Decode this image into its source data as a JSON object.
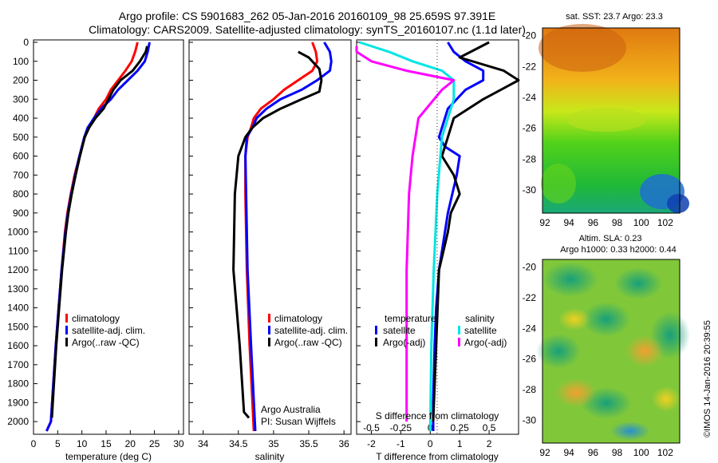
{
  "header": {
    "line1": "Argo profile: CS 5901683_262 05-Jan-2016 20160109_98 25.659S 97.391E",
    "line2": "Climatology: CARS2009. Satellite-adjusted climatology: synTS_20160107.nc (1.1d later)"
  },
  "colors": {
    "climatology": "#ff0000",
    "satellite": "#0000ff",
    "argo": "#000000",
    "sat_salinity": "#00e5e5",
    "argo_salinity": "#ff00ff"
  },
  "depth_ticks": [
    "0",
    "100",
    "200",
    "300",
    "400",
    "500",
    "600",
    "700",
    "800",
    "900",
    "1000",
    "1100",
    "1200",
    "1300",
    "1400",
    "1500",
    "1600",
    "1700",
    "1800",
    "1900",
    "2000"
  ],
  "legend_profile": [
    "climatology",
    "satellite-adj. clim.",
    "Argo(..raw -QC)"
  ],
  "credit": {
    "line1": "Argo Australia",
    "line2": "PI: Susan Wijffels"
  },
  "diff_legend": {
    "temperature_head": "temperature",
    "salinity_head": "salinity",
    "sat": "satellite",
    "argo": "Argo(-adj)"
  },
  "maps": {
    "sst_title": "sat. SST: 23.7  Argo: 23.3",
    "sla_title1": "Altim. SLA: 0.23",
    "sla_title2": "Argo h1000: 0.33 h2000: 0.44",
    "lat_ticks": [
      "-20",
      "-22",
      "-24",
      "-26",
      "-28",
      "-30"
    ],
    "lon_ticks": [
      "92",
      "94",
      "96",
      "98",
      "100",
      "102"
    ]
  },
  "timestamp": "©IMOS 14-Jan-2016 20:39:55",
  "chart_data": [
    {
      "type": "line",
      "xlabel": "temperature (deg C)",
      "xlim": [
        0,
        31
      ],
      "ylim": [
        0,
        2050
      ],
      "y_reversed": true,
      "xticks": [
        "0",
        "5",
        "10",
        "15",
        "20",
        "25",
        "30"
      ],
      "series": [
        {
          "name": "climatology",
          "x": [
            21.5,
            21.0,
            20.3,
            19.0,
            17.5,
            16.0,
            15.0,
            13.5,
            12.5,
            11.5,
            10.5,
            9.5,
            8.5,
            7.7,
            7.0,
            6.5,
            5.8,
            5.2,
            4.6,
            3.6,
            2.7
          ],
          "y": [
            0,
            50,
            100,
            150,
            200,
            250,
            300,
            350,
            400,
            450,
            500,
            600,
            700,
            800,
            900,
            1000,
            1200,
            1400,
            1600,
            2000,
            2050
          ]
        },
        {
          "name": "satellite-adj. clim.",
          "x": [
            24.0,
            23.6,
            23.0,
            21.5,
            19.5,
            17.5,
            16.0,
            14.0,
            12.5,
            11.2,
            10.5,
            9.5,
            8.6,
            7.8,
            7.1,
            6.6,
            5.8,
            5.2,
            4.6,
            3.6,
            2.7
          ],
          "y": [
            0,
            50,
            100,
            150,
            200,
            250,
            300,
            350,
            400,
            450,
            500,
            600,
            700,
            800,
            900,
            1000,
            1200,
            1400,
            1600,
            2000,
            2050
          ]
        },
        {
          "name": "Argo(..raw -QC)",
          "x": [
            23.5,
            23.2,
            22.0,
            20.5,
            18.0,
            16.5,
            15.5,
            14.5,
            12.8,
            11.5,
            10.6,
            9.6,
            8.7,
            7.9,
            7.2,
            6.7,
            5.9,
            5.3,
            4.7,
            3.8
          ],
          "y": [
            20,
            50,
            100,
            150,
            200,
            250,
            300,
            350,
            400,
            450,
            500,
            600,
            700,
            800,
            900,
            1000,
            1200,
            1400,
            1600,
            1980
          ]
        }
      ]
    },
    {
      "type": "line",
      "xlabel": "salinity",
      "xlim": [
        33.8,
        36.1
      ],
      "ylim": [
        0,
        2050
      ],
      "y_reversed": true,
      "xticks": [
        "34",
        "34.5",
        "35",
        "35.5",
        "36"
      ],
      "series": [
        {
          "name": "climatology",
          "x": [
            35.55,
            35.6,
            35.62,
            35.55,
            35.35,
            35.15,
            35.0,
            34.82,
            34.72,
            34.68,
            34.63,
            34.6,
            34.6,
            34.62,
            34.66,
            34.72
          ],
          "y": [
            0,
            50,
            100,
            150,
            200,
            250,
            300,
            350,
            400,
            450,
            500,
            600,
            800,
            1200,
            1600,
            2050
          ]
        },
        {
          "name": "satellite-adj. clim.",
          "x": [
            35.72,
            35.8,
            35.82,
            35.8,
            35.62,
            35.4,
            35.1,
            34.9,
            34.76,
            34.7,
            34.62,
            34.6,
            34.61,
            34.63,
            34.68,
            34.74
          ],
          "y": [
            0,
            50,
            100,
            150,
            200,
            250,
            300,
            350,
            400,
            450,
            500,
            600,
            800,
            1200,
            1600,
            2050
          ]
        },
        {
          "name": "Argo(..raw -QC)",
          "x": [
            35.35,
            35.5,
            35.65,
            35.68,
            35.65,
            35.4,
            35.1,
            34.85,
            34.7,
            34.6,
            34.5,
            34.45,
            34.43,
            34.52,
            34.58,
            34.65
          ],
          "y": [
            50,
            80,
            140,
            200,
            260,
            300,
            350,
            400,
            450,
            500,
            600,
            800,
            1200,
            1600,
            1950,
            1980
          ]
        }
      ]
    },
    {
      "type": "line",
      "xlabel": "T difference from climatology",
      "title_top": "S difference from climatology",
      "xlim": [
        -2.5,
        3.0
      ],
      "top_xlim": [
        -0.625,
        0.75
      ],
      "ylim": [
        0,
        2050
      ],
      "y_reversed": true,
      "xticks": [
        "-2",
        "-1",
        "0",
        "1",
        "2"
      ],
      "top_xticks": [
        "-0.5",
        "-0.25",
        "0",
        "0.25",
        "0.5"
      ],
      "top_xtick_values": [
        -0.5,
        -0.25,
        0,
        0.25,
        0.5
      ],
      "series": [
        {
          "name": "satellite",
          "group": "temperature",
          "x": [
            0.6,
            0.8,
            1.2,
            1.8,
            1.8,
            1.2,
            0.6,
            0.3,
            0.5,
            1.0,
            0.9,
            0.6,
            0.5,
            0.3,
            0.2,
            0.15,
            0.1,
            0.1
          ],
          "y": [
            0,
            50,
            100,
            150,
            200,
            250,
            350,
            500,
            550,
            600,
            700,
            900,
            1000,
            1200,
            1400,
            1600,
            1900,
            2050
          ]
        },
        {
          "name": "Argo(-adj)",
          "group": "temperature",
          "x": [
            2.0,
            1.0,
            2.5,
            3.0,
            1.8,
            0.8,
            0.6,
            0.4,
            0.8,
            1.0,
            0.7,
            0.6,
            0.3,
            0.2,
            0.1
          ],
          "y": [
            0,
            80,
            150,
            200,
            300,
            400,
            500,
            600,
            700,
            800,
            900,
            1000,
            1200,
            1600,
            2000
          ]
        },
        {
          "name": "satellite",
          "group": "salinity",
          "x": [
            -0.6,
            -0.35,
            -0.15,
            0.1,
            0.2,
            0.2,
            0.1,
            0.06,
            0.03,
            0.01,
            0.0
          ],
          "y": [
            0,
            50,
            100,
            150,
            200,
            300,
            500,
            800,
            1200,
            1600,
            2050
          ]
        },
        {
          "name": "Argo(-adj)",
          "group": "salinity",
          "x": [
            -0.88,
            -0.7,
            -0.5,
            -0.2,
            0.2,
            0.1,
            -0.1,
            -0.15,
            -0.18,
            -0.2,
            -0.2,
            -0.2
          ],
          "y": [
            20,
            50,
            100,
            150,
            200,
            250,
            400,
            600,
            800,
            1200,
            1600,
            2000
          ]
        }
      ]
    }
  ]
}
